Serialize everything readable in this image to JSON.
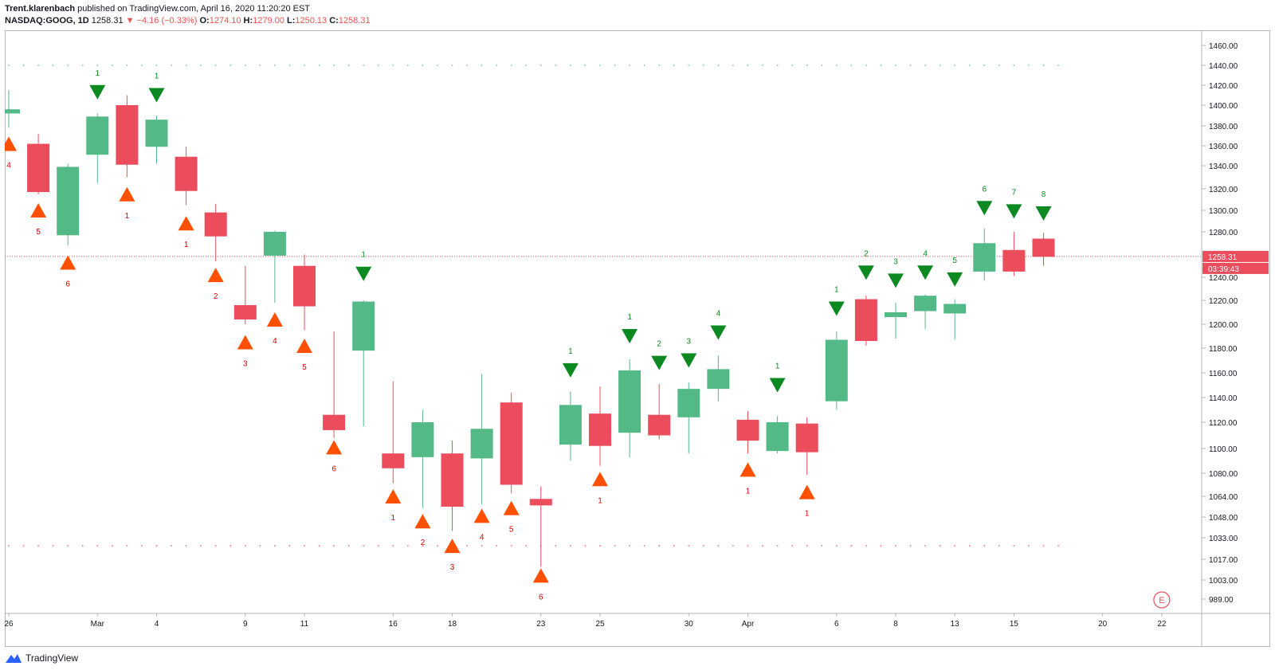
{
  "header": {
    "author": "Trent.klarenbach",
    "published_text": "published on TradingView.com, April 16, 2020 11:20:20 EST",
    "symbol": "NASDAQ:GOOG, 1D",
    "last": "1258.31",
    "change": "−4.16 (−0.33%)",
    "open_label": "O:",
    "open": "1274.10",
    "high_label": "H:",
    "high": "1279.00",
    "low_label": "L:",
    "low": "1250.13",
    "close_label": "C:",
    "close": "1258.31"
  },
  "footer": {
    "brand": "TradingView"
  },
  "colors": {
    "up": "#53b987",
    "down": "#eb4d5c",
    "buy_marker": "#ff5000",
    "sell_marker": "#0c8a21",
    "last_price": "#eb4d5c"
  },
  "chart_data": {
    "type": "candlestick",
    "price_ticks": [
      1460,
      1440,
      1420,
      1400,
      1380,
      1360,
      1340,
      1320,
      1300,
      1280,
      1240,
      1220,
      1200,
      1180,
      1160,
      1140,
      1120,
      1100,
      1080,
      1064,
      1048,
      1033,
      1017,
      1003,
      989
    ],
    "price_tick_labels": [
      "1460.00",
      "1440.00",
      "1420.00",
      "1400.00",
      "1380.00",
      "1360.00",
      "1340.00",
      "1320.00",
      "1300.00",
      "1280.00",
      "1240.00",
      "1220.00",
      "1200.00",
      "1180.00",
      "1160.00",
      "1140.00",
      "1120.00",
      "1100.00",
      "1080.00",
      "1064.00",
      "1048.00",
      "1033.00",
      "1017.00",
      "1003.00",
      "989.00"
    ],
    "x_ticks": [
      {
        "label": "26",
        "slot": 0
      },
      {
        "label": "Mar",
        "slot": 3
      },
      {
        "label": "4",
        "slot": 5
      },
      {
        "label": "9",
        "slot": 8
      },
      {
        "label": "11",
        "slot": 10
      },
      {
        "label": "16",
        "slot": 13
      },
      {
        "label": "18",
        "slot": 15
      },
      {
        "label": "23",
        "slot": 18
      },
      {
        "label": "25",
        "slot": 20
      },
      {
        "label": "30",
        "slot": 23
      },
      {
        "label": "Apr",
        "slot": 25
      },
      {
        "label": "6",
        "slot": 28
      },
      {
        "label": "8",
        "slot": 30
      },
      {
        "label": "13",
        "slot": 32
      },
      {
        "label": "15",
        "slot": 34
      },
      {
        "label": "20",
        "slot": 37
      },
      {
        "label": "22",
        "slot": 39
      }
    ],
    "last_price": {
      "value": 1258.31,
      "label": "1258.31",
      "countdown": "03:39:43"
    },
    "upper_dots_level": 1440,
    "lower_dots_level": 1027,
    "candles": [
      {
        "o": 1392,
        "h": 1415,
        "l": 1378,
        "c": 1396
      },
      {
        "o": 1362,
        "h": 1372,
        "l": 1315,
        "c": 1317
      },
      {
        "o": 1277,
        "h": 1342,
        "l": 1268,
        "c": 1339
      },
      {
        "o": 1351,
        "h": 1392,
        "l": 1325,
        "c": 1389
      },
      {
        "o": 1400,
        "h": 1410,
        "l": 1330,
        "c": 1341
      },
      {
        "o": 1359,
        "h": 1390,
        "l": 1342,
        "c": 1386
      },
      {
        "o": 1349,
        "h": 1359,
        "l": 1305,
        "c": 1318
      },
      {
        "o": 1298,
        "h": 1306,
        "l": 1254,
        "c": 1276
      },
      {
        "o": 1216,
        "h": 1250,
        "l": 1200,
        "c": 1204
      },
      {
        "o": 1259,
        "h": 1281,
        "l": 1218,
        "c": 1280
      },
      {
        "o": 1250,
        "h": 1260,
        "l": 1195,
        "c": 1215
      },
      {
        "o": 1126,
        "h": 1194,
        "l": 1108,
        "c": 1114
      },
      {
        "o": 1178,
        "h": 1220,
        "l": 1117,
        "c": 1219
      },
      {
        "o": 1096,
        "h": 1153,
        "l": 1073,
        "c": 1084
      },
      {
        "o": 1093,
        "h": 1130,
        "l": 1055,
        "c": 1120
      },
      {
        "o": 1096,
        "h": 1106,
        "l": 1038,
        "c": 1056
      },
      {
        "o": 1092,
        "h": 1159,
        "l": 1058,
        "c": 1115
      },
      {
        "o": 1136,
        "h": 1144,
        "l": 1066,
        "c": 1072
      },
      {
        "o": 1062,
        "h": 1071,
        "l": 1012,
        "c": 1057
      },
      {
        "o": 1103,
        "h": 1145,
        "l": 1090,
        "c": 1134
      },
      {
        "o": 1127,
        "h": 1149,
        "l": 1086,
        "c": 1102
      },
      {
        "o": 1112,
        "h": 1171,
        "l": 1093,
        "c": 1162
      },
      {
        "o": 1126,
        "h": 1151,
        "l": 1107,
        "c": 1110
      },
      {
        "o": 1124,
        "h": 1152,
        "l": 1096,
        "c": 1147
      },
      {
        "o": 1147,
        "h": 1174,
        "l": 1137,
        "c": 1163
      },
      {
        "o": 1122,
        "h": 1129,
        "l": 1096,
        "c": 1106
      },
      {
        "o": 1098,
        "h": 1125,
        "l": 1096,
        "c": 1120
      },
      {
        "o": 1119,
        "h": 1124,
        "l": 1079,
        "c": 1097
      },
      {
        "o": 1137,
        "h": 1194,
        "l": 1130,
        "c": 1187
      },
      {
        "o": 1221,
        "h": 1224,
        "l": 1182,
        "c": 1186
      },
      {
        "o": 1206,
        "h": 1218,
        "l": 1188,
        "c": 1210
      },
      {
        "o": 1211,
        "h": 1225,
        "l": 1196,
        "c": 1224
      },
      {
        "o": 1209,
        "h": 1221,
        "l": 1187,
        "c": 1217
      },
      {
        "o": 1245,
        "h": 1283,
        "l": 1237,
        "c": 1270
      },
      {
        "o": 1264,
        "h": 1280,
        "l": 1241,
        "c": 1245
      },
      {
        "o": 1274,
        "h": 1279,
        "l": 1250,
        "c": 1258
      }
    ],
    "buy_markers": [
      {
        "slot": 0,
        "price": 1362,
        "label": "4"
      },
      {
        "slot": 1,
        "price": 1300,
        "label": "5"
      },
      {
        "slot": 2,
        "price": 1253,
        "label": "6"
      },
      {
        "slot": 4,
        "price": 1315,
        "label": "1"
      },
      {
        "slot": 6,
        "price": 1288,
        "label": "1"
      },
      {
        "slot": 7,
        "price": 1242,
        "label": "2"
      },
      {
        "slot": 8,
        "price": 1185,
        "label": "3"
      },
      {
        "slot": 9,
        "price": 1204,
        "label": "4"
      },
      {
        "slot": 10,
        "price": 1182,
        "label": "5"
      },
      {
        "slot": 11,
        "price": 1101,
        "label": "6"
      },
      {
        "slot": 13,
        "price": 1064,
        "label": "1"
      },
      {
        "slot": 14,
        "price": 1045,
        "label": "2"
      },
      {
        "slot": 15,
        "price": 1027,
        "label": "3"
      },
      {
        "slot": 16,
        "price": 1049,
        "label": "4"
      },
      {
        "slot": 17,
        "price": 1055,
        "label": "5"
      },
      {
        "slot": 18,
        "price": 1006,
        "label": "6"
      },
      {
        "slot": 20,
        "price": 1076,
        "label": "1"
      },
      {
        "slot": 25,
        "price": 1083,
        "label": "1"
      },
      {
        "slot": 27,
        "price": 1067,
        "label": "1"
      }
    ],
    "sell_markers": [
      {
        "slot": 3,
        "price": 1413,
        "label": "1"
      },
      {
        "slot": 5,
        "price": 1410,
        "label": "1"
      },
      {
        "slot": 12,
        "price": 1243,
        "label": "1"
      },
      {
        "slot": 19,
        "price": 1162,
        "label": "1"
      },
      {
        "slot": 21,
        "price": 1190,
        "label": "1"
      },
      {
        "slot": 22,
        "price": 1168,
        "label": "2"
      },
      {
        "slot": 23,
        "price": 1170,
        "label": "3"
      },
      {
        "slot": 24,
        "price": 1193,
        "label": "4"
      },
      {
        "slot": 26,
        "price": 1150,
        "label": "1"
      },
      {
        "slot": 28,
        "price": 1213,
        "label": "1"
      },
      {
        "slot": 29,
        "price": 1244,
        "label": "2"
      },
      {
        "slot": 30,
        "price": 1237,
        "label": "3"
      },
      {
        "slot": 31,
        "price": 1244,
        "label": "4"
      },
      {
        "slot": 32,
        "price": 1238,
        "label": "5"
      },
      {
        "slot": 33,
        "price": 1302,
        "label": "6"
      },
      {
        "slot": 34,
        "price": 1299,
        "label": "7"
      },
      {
        "slot": 35,
        "price": 1297,
        "label": "8"
      }
    ],
    "events": [
      {
        "slot": 39,
        "label": "E"
      }
    ]
  }
}
